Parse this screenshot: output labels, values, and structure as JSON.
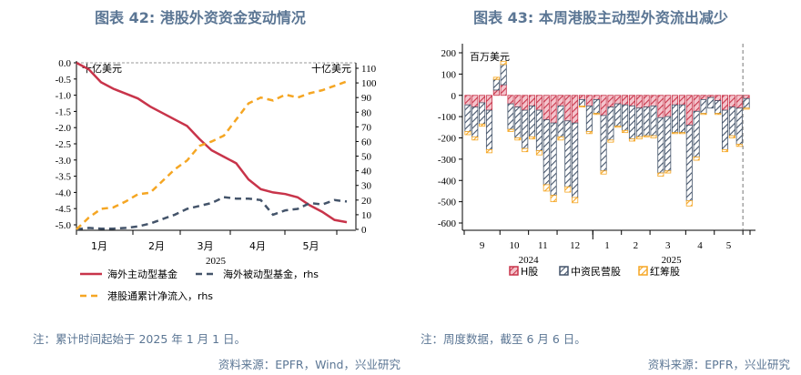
{
  "left": {
    "title": "图表 42: 港股外资资金变动情况",
    "note": "注：累计时间起始于 2025 年 1 月 1 日。",
    "source": "资料来源：EPFR，Wind，兴业研究"
  },
  "right": {
    "title": "图表 43: 本周港股主动型外资流出减少",
    "note": "注：周度数据，截至 6 月 6 日。",
    "source": "资料来源：EPFR，兴业研究"
  },
  "chart_data": [
    {
      "type": "line",
      "unit_left": "十亿美元",
      "unit_right": "十亿美元",
      "x_ticks": [
        "1月",
        "2月",
        "3月",
        "4月",
        "5月"
      ],
      "year_label": "2025",
      "ylim_left": [
        -5.0,
        0.0
      ],
      "yticks_left": [
        "0.0",
        "-0.5",
        "-1.0",
        "-1.5",
        "-2.0",
        "-2.5",
        "-3.0",
        "-3.5",
        "-4.0",
        "-4.5",
        "-5.0"
      ],
      "ylim_right": [
        0,
        110
      ],
      "yticks_right": [
        "0",
        "10",
        "20",
        "30",
        "40",
        "50",
        "60",
        "70",
        "80",
        "90",
        "100",
        "110"
      ],
      "x": [
        "2025-01-03",
        "2025-01-10",
        "2025-01-17",
        "2025-01-24",
        "2025-01-31",
        "2025-02-07",
        "2025-02-14",
        "2025-02-21",
        "2025-02-28",
        "2025-03-07",
        "2025-03-14",
        "2025-03-21",
        "2025-03-28",
        "2025-04-04",
        "2025-04-11",
        "2025-04-18",
        "2025-04-25",
        "2025-05-02",
        "2025-05-09",
        "2025-05-16",
        "2025-05-23",
        "2025-05-30",
        "2025-06-06"
      ],
      "series": [
        {
          "name": "海外主动型基金",
          "axis": "left",
          "color": "#c8344a",
          "style": "solid",
          "values": [
            0,
            -0.2,
            -0.6,
            -0.8,
            -0.95,
            -1.1,
            -1.35,
            -1.55,
            -1.75,
            -1.95,
            -2.35,
            -2.7,
            -2.9,
            -3.1,
            -3.6,
            -3.9,
            -4.0,
            -4.05,
            -4.15,
            -4.4,
            -4.6,
            -4.85,
            -4.92
          ]
        },
        {
          "name": "海外被动型基金，rhs",
          "axis": "right",
          "color": "#44546a",
          "style": "dashed",
          "values": [
            0,
            1,
            0.5,
            0.5,
            1,
            2,
            4,
            7,
            10,
            14,
            16,
            18,
            22,
            21,
            21,
            20,
            10,
            13,
            14,
            18,
            17,
            20,
            19
          ]
        },
        {
          "name": "港股通累计净流入，rhs",
          "axis": "right",
          "color": "#f5a623",
          "style": "dashed",
          "values": [
            0,
            8,
            14,
            15,
            19,
            24,
            25,
            33,
            41,
            47,
            57,
            60,
            64,
            75,
            86,
            90,
            88,
            92,
            90,
            93,
            95,
            98,
            101
          ]
        }
      ]
    },
    {
      "type": "bar",
      "stacked": true,
      "unit": "百万美元",
      "ylim": [
        -600,
        200
      ],
      "yticks": [
        "200",
        "100",
        "0",
        "-100",
        "-200",
        "-300",
        "-400",
        "-500",
        "-600"
      ],
      "month_groups": [
        {
          "label": "9",
          "bars": 5
        },
        {
          "label": "10",
          "bars": 4
        },
        {
          "label": "11",
          "bars": 4
        },
        {
          "label": "12",
          "bars": 5
        },
        {
          "label": "1",
          "bars": 4
        },
        {
          "label": "2",
          "bars": 4
        },
        {
          "label": "3",
          "bars": 5
        },
        {
          "label": "4",
          "bars": 4
        },
        {
          "label": "5",
          "bars": 4
        },
        {
          "label": "",
          "bars": 1
        }
      ],
      "years": [
        {
          "label": "2024",
          "groups": 4
        },
        {
          "label": "2025",
          "groups": 6
        }
      ],
      "series": [
        {
          "name": "H股",
          "color": "#c8344a",
          "values": [
            -45,
            -55,
            -35,
            -70,
            25,
            50,
            -40,
            -55,
            -70,
            -50,
            -70,
            -115,
            -130,
            -50,
            -120,
            -130,
            -20,
            -50,
            -20,
            -95,
            -55,
            -40,
            -45,
            -50,
            -60,
            -55,
            -50,
            -105,
            -100,
            -45,
            -45,
            -140,
            -75,
            -20,
            -10,
            -25,
            -70,
            -55,
            -60,
            -15
          ]
        },
        {
          "name": "中资民营股",
          "color": "#44546a",
          "values": [
            -125,
            -140,
            -100,
            -185,
            50,
            95,
            -120,
            -145,
            -180,
            -145,
            -190,
            -305,
            -340,
            -145,
            -310,
            -350,
            -30,
            -120,
            -65,
            -260,
            -155,
            -105,
            -120,
            -155,
            -135,
            -135,
            -140,
            -260,
            -255,
            -130,
            -130,
            -355,
            -215,
            -65,
            -50,
            -60,
            -185,
            -135,
            -170,
            -45
          ]
        },
        {
          "name": "红筹股",
          "color": "#f5a623",
          "values": [
            -15,
            -15,
            -10,
            -15,
            10,
            15,
            -10,
            -10,
            -15,
            -10,
            -20,
            -30,
            -30,
            -15,
            -25,
            -25,
            -5,
            -10,
            -5,
            -15,
            -10,
            -5,
            -10,
            -10,
            -10,
            -5,
            -10,
            -15,
            -10,
            -5,
            -5,
            -25,
            -15,
            -5,
            0,
            -5,
            -10,
            -10,
            -10,
            -5
          ]
        }
      ]
    }
  ]
}
